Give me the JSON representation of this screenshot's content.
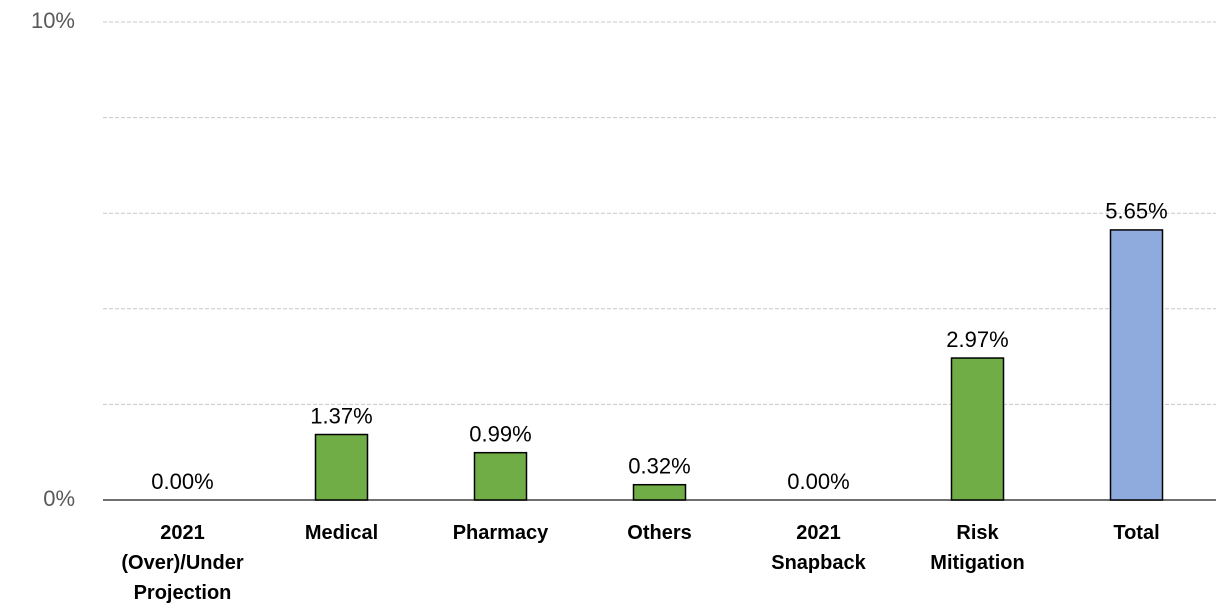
{
  "chart_data": {
    "type": "bar",
    "categories": [
      "2021 (Over)/Under Projection",
      "Medical",
      "Pharmacy",
      "Others",
      "2021 Snapback",
      "Risk Mitigation",
      "Total"
    ],
    "values": [
      0,
      1.37,
      0.99,
      0.32,
      0,
      2.97,
      5.65
    ],
    "value_labels": [
      "0.00%",
      "1.37%",
      "0.99%",
      "0.32%",
      "0.00%",
      "2.97%",
      "5.65%"
    ],
    "colors": [
      "#70ad47",
      "#70ad47",
      "#70ad47",
      "#70ad47",
      "#70ad47",
      "#70ad47",
      "#8faadc"
    ],
    "ylim": [
      0,
      10
    ],
    "yticks": [
      {
        "value": 0,
        "label": "0%"
      },
      {
        "value": 2,
        "label": null
      },
      {
        "value": 4,
        "label": null
      },
      {
        "value": 6,
        "label": null
      },
      {
        "value": 8,
        "label": null
      },
      {
        "value": 10,
        "label": "10%"
      }
    ],
    "grid": true
  }
}
